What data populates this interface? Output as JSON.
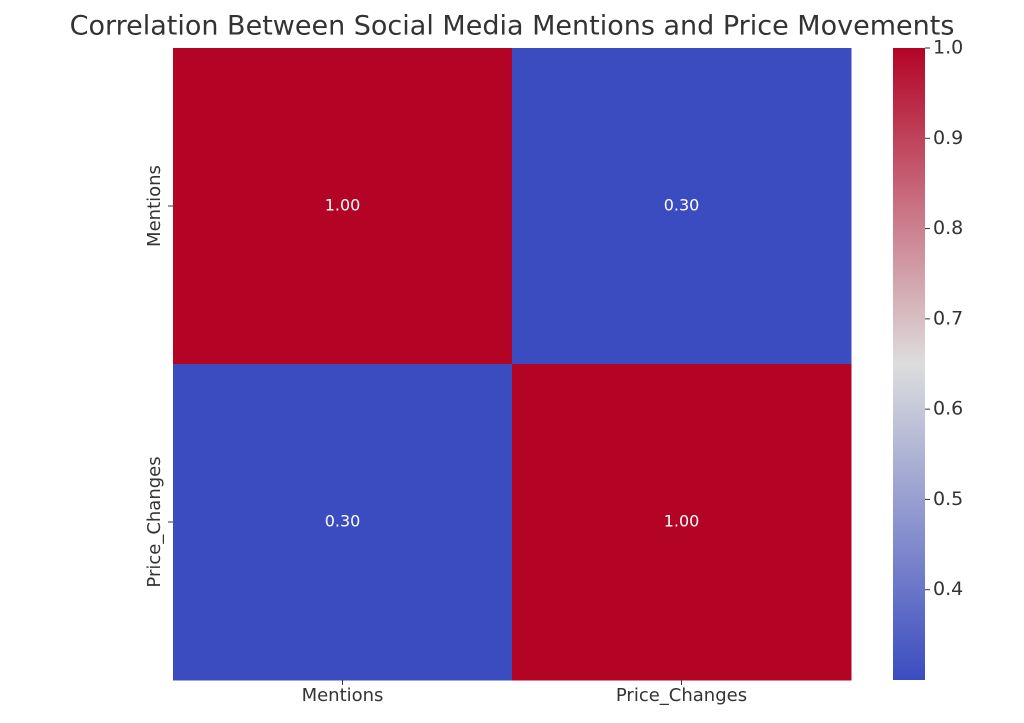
{
  "chart_data": {
    "type": "heatmap",
    "title": "Correlation Between Social Media Mentions and Price Movements",
    "x_categories": [
      "Mentions",
      "Price_Changes"
    ],
    "y_categories": [
      "Mentions",
      "Price_Changes"
    ],
    "values": [
      [
        1,
        0.3
      ],
      [
        0.3,
        1
      ]
    ],
    "value_labels": [
      [
        "1.00",
        "0.30"
      ],
      [
        "0.30",
        "1.00"
      ]
    ],
    "colormap": [
      "#3b4cc0",
      "#dddddd",
      "#b40426"
    ],
    "colorbar_lim": [
      0.3,
      1
    ],
    "colorbar_ticks": [
      0.4,
      0.5,
      0.6,
      0.7,
      0.8,
      0.9,
      {
        "value": 1,
        "label": "1.0"
      }
    ]
  }
}
